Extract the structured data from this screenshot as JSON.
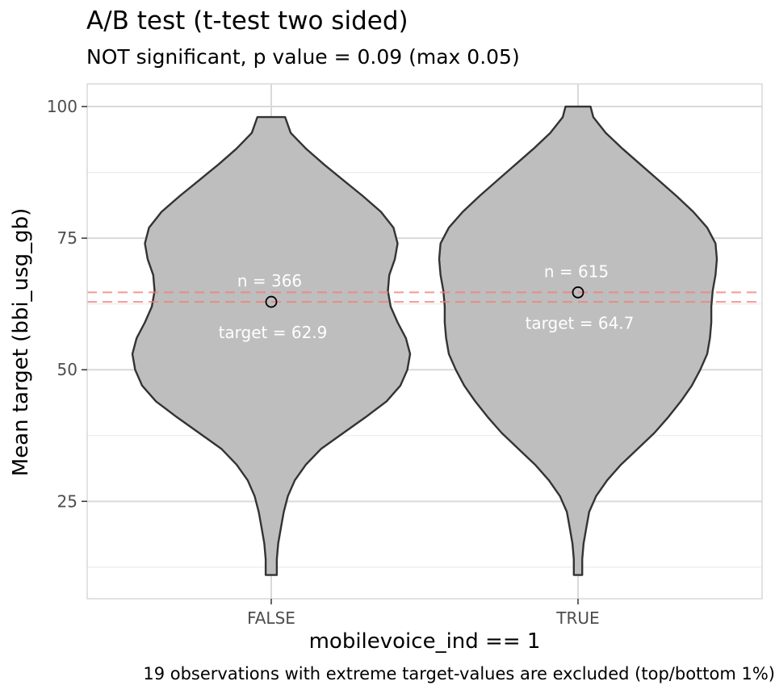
{
  "chart_data": {
    "type": "violin",
    "title": "A/B test (t-test two sided)",
    "subtitle": "NOT significant, p value = 0.09 (max 0.05)",
    "xlabel": "mobilevoice_ind == 1",
    "ylabel": "Mean target (bbi_usg_gb)",
    "caption": "19 observations with extreme target-values are excluded (top/bottom 1%)",
    "categories": [
      "FALSE",
      "TRUE"
    ],
    "y_ticks": [
      "100",
      "75",
      "50",
      "25"
    ],
    "ylim": [
      6.5,
      104.3
    ],
    "grid": true,
    "groups": [
      {
        "category": "FALSE",
        "n_label": "n = 366",
        "mean_label": "target = 62.9",
        "mean": 62.9,
        "min": 11,
        "max": 98,
        "density": [
          [
            11,
            0.04
          ],
          [
            14,
            0.04
          ],
          [
            17,
            0.05
          ],
          [
            20,
            0.07
          ],
          [
            23,
            0.09
          ],
          [
            26,
            0.12
          ],
          [
            29,
            0.17
          ],
          [
            32,
            0.25
          ],
          [
            35,
            0.36
          ],
          [
            38,
            0.52
          ],
          [
            41,
            0.68
          ],
          [
            44,
            0.83
          ],
          [
            47,
            0.93
          ],
          [
            50,
            0.98
          ],
          [
            53,
            1.0
          ],
          [
            56,
            0.97
          ],
          [
            59,
            0.91
          ],
          [
            62,
            0.86
          ],
          [
            65,
            0.84
          ],
          [
            68,
            0.85
          ],
          [
            71,
            0.89
          ],
          [
            74,
            0.91
          ],
          [
            77,
            0.88
          ],
          [
            80,
            0.79
          ],
          [
            83,
            0.66
          ],
          [
            86,
            0.52
          ],
          [
            89,
            0.38
          ],
          [
            92,
            0.25
          ],
          [
            95,
            0.14
          ],
          [
            98,
            0.1
          ]
        ]
      },
      {
        "category": "TRUE",
        "n_label": "n = 615",
        "mean_label": "target = 64.7",
        "mean": 64.7,
        "min": 11,
        "max": 100,
        "density": [
          [
            11,
            0.03
          ],
          [
            14,
            0.03
          ],
          [
            17,
            0.04
          ],
          [
            20,
            0.06
          ],
          [
            23,
            0.08
          ],
          [
            26,
            0.13
          ],
          [
            29,
            0.21
          ],
          [
            32,
            0.31
          ],
          [
            35,
            0.43
          ],
          [
            38,
            0.55
          ],
          [
            41,
            0.65
          ],
          [
            44,
            0.74
          ],
          [
            47,
            0.82
          ],
          [
            50,
            0.88
          ],
          [
            53,
            0.93
          ],
          [
            56,
            0.95
          ],
          [
            59,
            0.96
          ],
          [
            62,
            0.96
          ],
          [
            65,
            0.97
          ],
          [
            68,
            0.99
          ],
          [
            71,
            1.0
          ],
          [
            74,
            0.99
          ],
          [
            77,
            0.93
          ],
          [
            80,
            0.83
          ],
          [
            83,
            0.71
          ],
          [
            86,
            0.58
          ],
          [
            89,
            0.45
          ],
          [
            92,
            0.32
          ],
          [
            95,
            0.2
          ],
          [
            98,
            0.11
          ],
          [
            100,
            0.09
          ]
        ]
      }
    ],
    "reference_lines": [
      62.9,
      64.7
    ],
    "colors": {
      "violin_fill": "#bebebe",
      "violin_stroke": "#333333",
      "grid_major": "#d9d9d9",
      "grid_minor": "#ebebeb",
      "panel_border": "#d9d9d9",
      "ref_line": "#f08080",
      "label_text": "#ffffff",
      "tick_text": "#4d4d4d"
    }
  }
}
